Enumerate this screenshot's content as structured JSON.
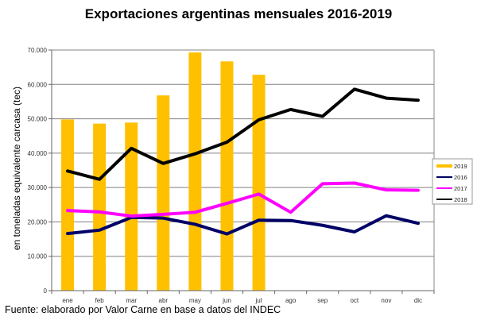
{
  "chart_data": {
    "type": "bar+line",
    "title": "Exportaciones argentinas mensuales 2016-2019",
    "xlabel": "",
    "ylabel": "en toneladas equivalente carcasa (tec)",
    "source": "Fuente: elaborado por  Valor Carne en base a datos del INDEC",
    "categories": [
      "ene",
      "feb",
      "mar",
      "abr",
      "may",
      "jun",
      "jul",
      "ago",
      "sep",
      "oct",
      "nov",
      "dic"
    ],
    "ylim": [
      0,
      70000
    ],
    "yticks": [
      0,
      10000,
      20000,
      30000,
      40000,
      50000,
      60000,
      70000
    ],
    "ytick_labels": [
      "0",
      "10.000",
      "20.000",
      "30.000",
      "40.000",
      "50.000",
      "60.000",
      "70.000"
    ],
    "grid": true,
    "legend_position": "right",
    "series": [
      {
        "name": "2019",
        "type": "bar",
        "color": "#FFC000",
        "values": [
          49800,
          48600,
          48900,
          56800,
          69300,
          66700,
          62800,
          null,
          null,
          null,
          null,
          null
        ]
      },
      {
        "name": "2016",
        "type": "line",
        "color": "#000066",
        "values": [
          16600,
          17600,
          21300,
          21100,
          19300,
          16500,
          20500,
          20400,
          19000,
          17100,
          21800,
          19600
        ]
      },
      {
        "name": "2017",
        "type": "line",
        "color": "#FF00FF",
        "values": [
          23300,
          22900,
          21700,
          22200,
          22800,
          25400,
          28100,
          22800,
          31100,
          31300,
          29300,
          29200
        ]
      },
      {
        "name": "2018",
        "type": "line",
        "color": "#000000",
        "values": [
          34800,
          32400,
          41400,
          37000,
          39800,
          43200,
          49700,
          52700,
          50700,
          58600,
          56000,
          55400
        ]
      }
    ]
  }
}
